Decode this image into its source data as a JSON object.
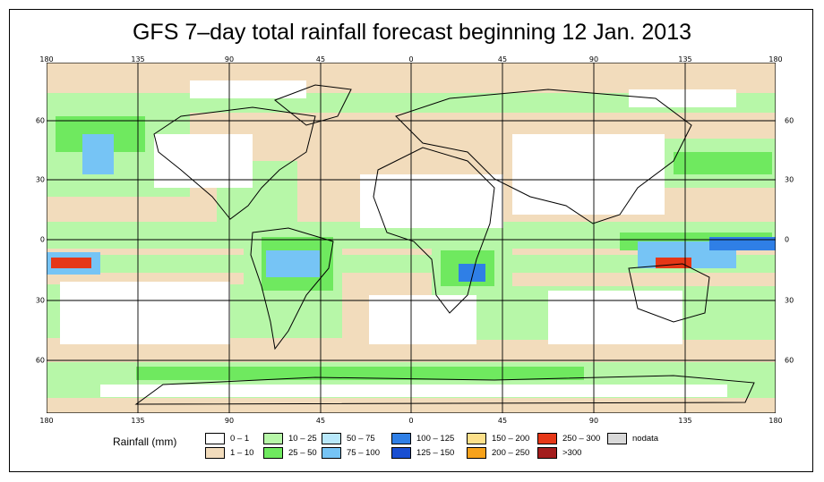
{
  "title": "GFS 7–day total rainfall forecast beginning 12 Jan. 2013",
  "axes": {
    "lon_ticks": [
      "180",
      "135",
      "90",
      "45",
      "0",
      "45",
      "90",
      "135",
      "180"
    ],
    "lat_ticks_top_to_bottom": [
      "60",
      "30",
      "0",
      "30",
      "60"
    ]
  },
  "legend": {
    "title": "Rainfall (mm)",
    "items": [
      {
        "label": "0 – 1",
        "color": "#ffffff"
      },
      {
        "label": "1 – 10",
        "color": "#f2dcbc"
      },
      {
        "label": "10 – 25",
        "color": "#b7f7a8"
      },
      {
        "label": "25 – 50",
        "color": "#6fe95f"
      },
      {
        "label": "50 – 75",
        "color": "#b8e8fb"
      },
      {
        "label": "75 – 100",
        "color": "#76c4f5"
      },
      {
        "label": "100 – 125",
        "color": "#2f7fe6"
      },
      {
        "label": "125 – 150",
        "color": "#1a4fd1"
      },
      {
        "label": "150 – 200",
        "color": "#fde08a"
      },
      {
        "label": "200 – 250",
        "color": "#f7a21b"
      },
      {
        "label": "250 – 300",
        "color": "#e63717"
      },
      {
        "label": ">300",
        "color": "#a31d1d"
      },
      {
        "label": "nodata",
        "color": "#d9d9d9"
      }
    ]
  }
}
